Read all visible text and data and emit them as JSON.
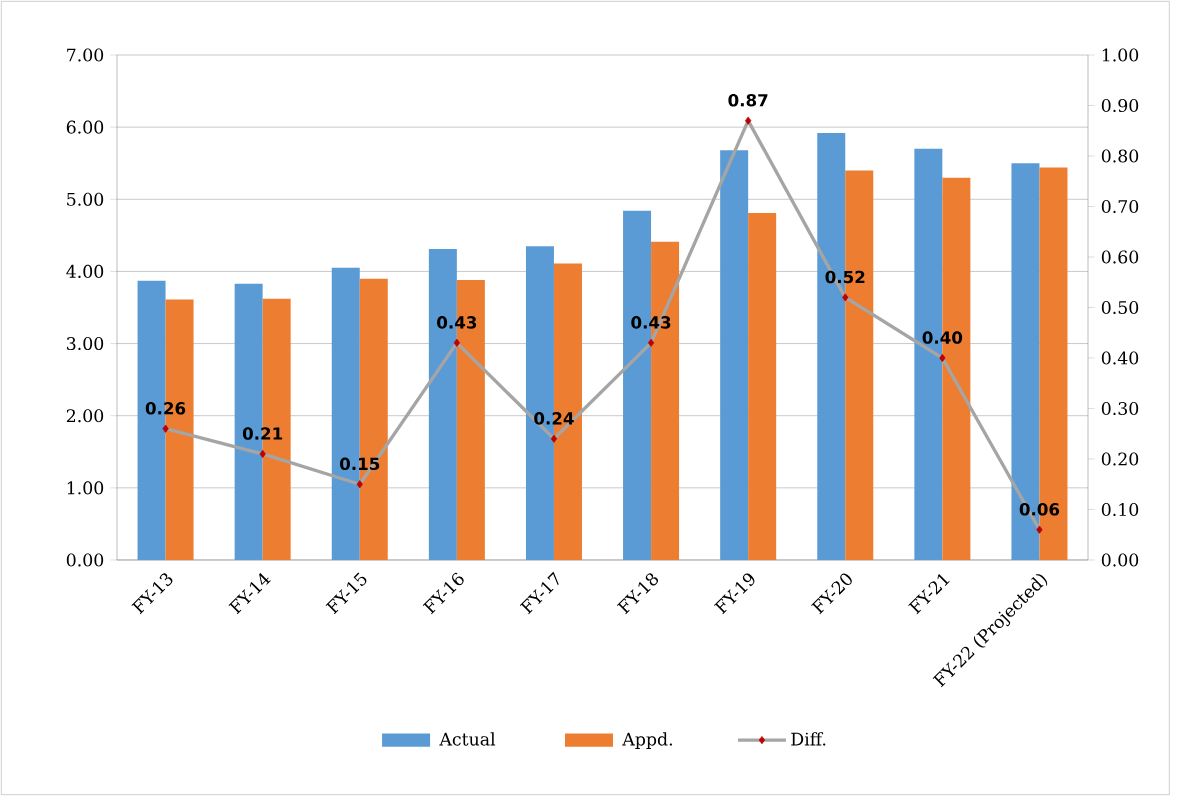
{
  "chart_data": {
    "type": "bar",
    "categories": [
      "FY-13",
      "FY-14",
      "FY-15",
      "FY-16",
      "FY-17",
      "FY-18",
      "FY-19",
      "FY-20",
      "FY-21",
      "FY-22 (Projected)"
    ],
    "series": [
      {
        "name": "Actual",
        "color": "#5b9bd5",
        "values": [
          3.87,
          3.83,
          4.05,
          4.31,
          4.35,
          4.84,
          5.68,
          5.92,
          5.7,
          5.5
        ]
      },
      {
        "name": "Appd.",
        "color": "#ed7d31",
        "values": [
          3.61,
          3.62,
          3.9,
          3.88,
          4.11,
          4.41,
          4.81,
          5.4,
          5.3,
          5.44
        ]
      },
      {
        "name": "Diff.",
        "type": "line",
        "axis": "y2",
        "color": "#a5a5a5",
        "marker": "diamond",
        "value_labels": [
          "0.26",
          "0.21",
          "0.15",
          "0.43",
          "0.24",
          "0.43",
          "0.87",
          "0.52",
          "0.40",
          "0.06"
        ],
        "values": [
          0.26,
          0.21,
          0.15,
          0.43,
          0.24,
          0.43,
          0.87,
          0.52,
          0.4,
          0.06
        ]
      }
    ],
    "ylim": [
      0,
      7
    ],
    "yticks": [
      {
        "value": 0,
        "label": "0.00"
      },
      {
        "value": 1,
        "label": "1.00"
      },
      {
        "value": 2,
        "label": "2.00"
      },
      {
        "value": 3,
        "label": "3.00"
      },
      {
        "value": 4,
        "label": "4.00"
      },
      {
        "value": 5,
        "label": "5.00"
      },
      {
        "value": 6,
        "label": "6.00"
      },
      {
        "value": 7,
        "label": "7.00"
      }
    ],
    "y2lim": [
      0,
      1
    ],
    "y2ticks": [
      {
        "value": 0,
        "label": "0.00"
      },
      {
        "value": 0.1,
        "label": "0.10"
      },
      {
        "value": 0.2,
        "label": "0.20"
      },
      {
        "value": 0.3,
        "label": "0.30"
      },
      {
        "value": 0.4,
        "label": "0.40"
      },
      {
        "value": 0.5,
        "label": "0.50"
      },
      {
        "value": 0.6,
        "label": "0.60"
      },
      {
        "value": 0.7,
        "label": "0.70"
      },
      {
        "value": 0.8,
        "label": "0.80"
      },
      {
        "value": 0.9,
        "label": "0.90"
      },
      {
        "value": 1,
        "label": "1.00"
      }
    ],
    "grid": "y",
    "legend": "bottom"
  }
}
